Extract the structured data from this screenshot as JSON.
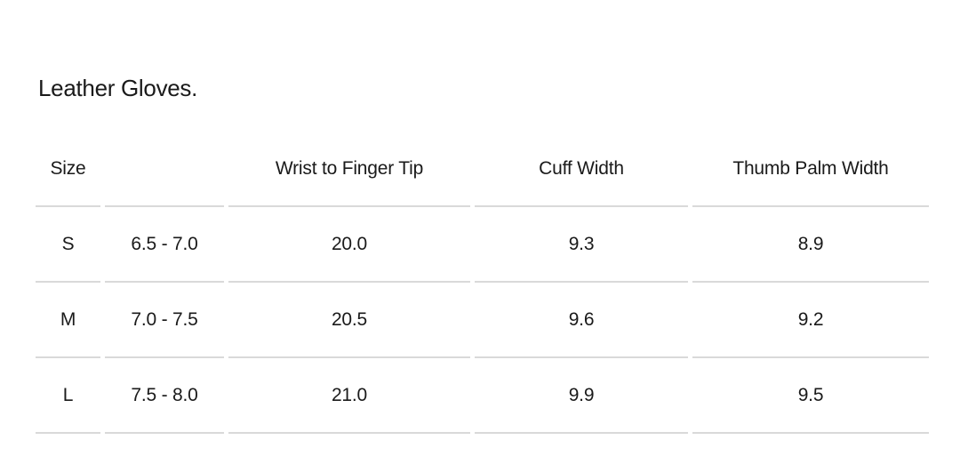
{
  "page": {
    "title": "Leather Gloves."
  },
  "size_chart": {
    "columns": [
      {
        "label": "Size"
      },
      {
        "label": ""
      },
      {
        "label": "Wrist to Finger Tip"
      },
      {
        "label": "Cuff Width"
      },
      {
        "label": "Thumb Palm Width"
      }
    ],
    "rows": [
      {
        "size": "S",
        "hand_size_range": "6.5 - 7.0",
        "wrist_to_finger_tip": "20.0",
        "cuff_width": "9.3",
        "thumb_palm_width": "8.9"
      },
      {
        "size": "M",
        "hand_size_range": "7.0 - 7.5",
        "wrist_to_finger_tip": "20.5",
        "cuff_width": "9.6",
        "thumb_palm_width": "9.2"
      },
      {
        "size": "L",
        "hand_size_range": "7.5 - 8.0",
        "wrist_to_finger_tip": "21.0",
        "cuff_width": "9.9",
        "thumb_palm_width": "9.5"
      }
    ],
    "colors": {
      "text": "#1a1a1a",
      "divider": "#d9d9d9",
      "background": "#ffffff"
    }
  }
}
